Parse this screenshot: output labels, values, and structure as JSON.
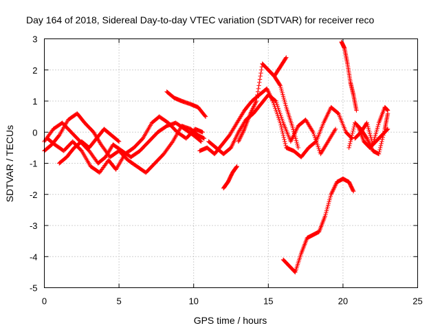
{
  "chart_data": {
    "type": "scatter",
    "title": "Day 164 of 2018, Sidereal Day-to-day VTEC variation (SDTVAR) for receiver reco",
    "xlabel": "GPS time / hours",
    "ylabel": "SDTVAR / TECUs",
    "xlim": [
      0,
      25
    ],
    "ylim": [
      -5,
      3
    ],
    "xticks": [
      "0",
      "5",
      "10",
      "15",
      "20",
      "25"
    ],
    "yticks": [
      "3",
      "2",
      "1",
      "0",
      "-1",
      "-2",
      "-3",
      "-4",
      "-5"
    ],
    "grid": true,
    "marker": "+",
    "color": "#ff0000",
    "series": [
      {
        "name": "s1",
        "x": [
          0.0,
          0.5,
          1.0,
          1.6,
          2.2,
          2.7,
          3.3,
          3.8,
          4.4,
          5.0,
          5.6,
          6.2,
          6.8,
          7.4,
          8.0,
          8.6,
          9.2,
          9.8,
          10.3,
          10.7
        ],
        "y": [
          -0.6,
          -0.4,
          -0.1,
          0.4,
          0.6,
          0.3,
          0.0,
          -0.4,
          -0.8,
          -0.6,
          -0.9,
          -1.1,
          -1.3,
          -1.0,
          -0.7,
          -0.3,
          0.2,
          0.1,
          -0.1,
          -0.2
        ]
      },
      {
        "name": "s2",
        "x": [
          0.0,
          0.6,
          1.2,
          1.8,
          2.4,
          3.0,
          3.6,
          4.1,
          4.6,
          5.2,
          5.8,
          6.4,
          7.0,
          7.6,
          8.2,
          8.8,
          9.4,
          10.0,
          10.5
        ],
        "y": [
          -0.3,
          0.1,
          0.3,
          0.0,
          -0.3,
          -0.6,
          -1.0,
          -0.8,
          -0.4,
          -0.6,
          -0.8,
          -0.6,
          -0.3,
          0.0,
          0.2,
          0.3,
          0.1,
          -0.1,
          -0.3
        ]
      },
      {
        "name": "s3",
        "x": [
          0.2,
          0.7,
          1.3,
          1.9,
          2.5,
          3.1,
          3.7,
          4.3,
          4.8,
          5.4,
          6.0,
          6.6,
          7.2,
          7.7,
          8.3,
          8.9,
          9.5,
          10.1,
          10.6
        ],
        "y": [
          -0.2,
          -0.4,
          -0.6,
          -0.3,
          -0.6,
          -1.1,
          -1.3,
          -0.9,
          -1.2,
          -0.7,
          -0.5,
          -0.2,
          0.3,
          0.5,
          0.3,
          0.0,
          -0.2,
          0.1,
          0.0
        ]
      },
      {
        "name": "s4",
        "x": [
          1.0,
          1.5,
          2.0,
          2.5,
          3.0,
          3.5,
          4.0,
          4.5,
          5.0
        ],
        "y": [
          -1.0,
          -0.8,
          -0.5,
          -0.3,
          -0.5,
          -0.2,
          0.1,
          -0.1,
          -0.3
        ]
      },
      {
        "name": "s5",
        "x": [
          8.2,
          8.7,
          9.2,
          9.8,
          10.3,
          10.8
        ],
        "y": [
          1.3,
          1.1,
          1.0,
          0.9,
          0.8,
          0.5
        ]
      },
      {
        "name": "s6",
        "x": [
          10.4,
          10.9,
          11.4,
          11.9,
          12.4,
          12.9,
          13.4,
          13.9,
          14.4,
          14.9,
          15.3,
          15.8,
          16.2,
          16.7,
          17.2,
          17.7,
          18.2,
          18.7,
          19.2,
          19.7,
          20.2,
          20.6
        ],
        "y": [
          -0.6,
          -0.5,
          -0.7,
          -0.4,
          -0.1,
          0.3,
          0.7,
          1.0,
          1.2,
          1.4,
          1.0,
          0.3,
          -0.5,
          -0.6,
          -0.8,
          -0.5,
          -0.3,
          0.3,
          0.8,
          0.6,
          0.0,
          -0.2
        ]
      },
      {
        "name": "s7",
        "x": [
          11.0,
          11.5,
          12.0,
          12.5,
          13.0,
          13.5,
          14.0,
          14.5,
          15.0,
          15.5,
          16.0,
          16.5,
          17.0,
          17.5,
          18.0,
          18.5,
          19.0,
          19.5
        ],
        "y": [
          -0.3,
          -0.5,
          -0.7,
          -0.5,
          0.0,
          0.4,
          0.6,
          0.9,
          1.2,
          1.0,
          0.3,
          -0.3,
          0.2,
          0.4,
          0.0,
          -0.7,
          -0.3,
          0.1
        ]
      },
      {
        "name": "s8",
        "x": [
          12.0,
          12.3,
          12.6,
          12.9
        ],
        "y": [
          -1.8,
          -1.6,
          -1.3,
          -1.1
        ]
      },
      {
        "name": "s9",
        "x": [
          13.0,
          13.4,
          13.8,
          14.2,
          14.6,
          15.0,
          15.4,
          15.8,
          16.2,
          16.6,
          17.0
        ],
        "y": [
          -0.3,
          0.1,
          0.6,
          1.0,
          2.2,
          2.0,
          1.8,
          1.5,
          0.8,
          0.2,
          -0.5
        ]
      },
      {
        "name": "s10",
        "x": [
          15.0,
          15.4,
          15.8,
          16.2
        ],
        "y": [
          2.0,
          1.8,
          2.1,
          2.4
        ]
      },
      {
        "name": "s11",
        "x": [
          16.0,
          16.4,
          16.8,
          17.2,
          17.6,
          18.0,
          18.4,
          18.8,
          19.2,
          19.6,
          20.0,
          20.4,
          20.7
        ],
        "y": [
          -4.1,
          -4.3,
          -4.5,
          -3.9,
          -3.4,
          -3.3,
          -3.2,
          -2.7,
          -2.0,
          -1.6,
          -1.5,
          -1.6,
          -1.9
        ]
      },
      {
        "name": "s12",
        "x": [
          19.9,
          20.1,
          20.3,
          20.5,
          20.7,
          20.9
        ],
        "y": [
          2.9,
          2.7,
          2.2,
          1.6,
          1.2,
          0.7
        ]
      },
      {
        "name": "s13",
        "x": [
          20.4,
          20.8,
          21.2,
          21.6,
          22.0,
          22.4,
          22.8,
          23.0
        ],
        "y": [
          -0.5,
          0.3,
          0.1,
          -0.2,
          -0.6,
          -0.7,
          0.1,
          0.6
        ]
      },
      {
        "name": "s14",
        "x": [
          20.8,
          21.2,
          21.6,
          22.0,
          22.4,
          22.8,
          23.0
        ],
        "y": [
          -0.2,
          0.0,
          0.3,
          -0.4,
          0.3,
          0.8,
          0.7
        ]
      },
      {
        "name": "s15",
        "x": [
          21.0,
          21.4,
          21.8,
          22.2,
          22.6,
          23.0
        ],
        "y": [
          0.2,
          -0.3,
          -0.5,
          -0.3,
          -0.1,
          0.1
        ]
      }
    ]
  }
}
